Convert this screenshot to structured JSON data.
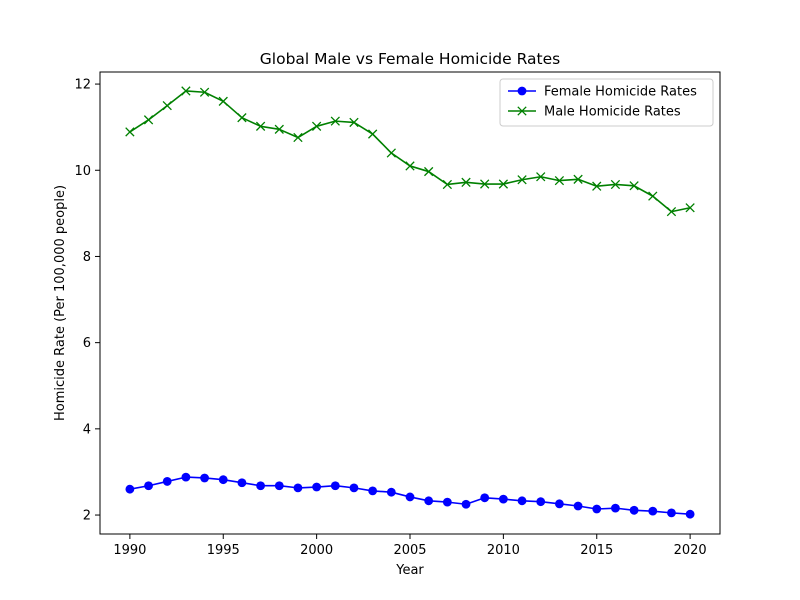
{
  "chart_data": {
    "type": "line",
    "title": "Global Male vs Female Homicide Rates",
    "xlabel": "Year",
    "ylabel": "Homicide Rate (Per 100,000 people)",
    "xlim": [
      1988.4,
      2021.6
    ],
    "ylim": [
      1.56,
      12.28
    ],
    "x_ticks": [
      1990,
      1995,
      2000,
      2005,
      2010,
      2015,
      2020
    ],
    "y_ticks": [
      2,
      4,
      6,
      8,
      10,
      12
    ],
    "grid": false,
    "legend_position": "top-right",
    "x": [
      1990,
      1991,
      1992,
      1993,
      1994,
      1995,
      1996,
      1997,
      1998,
      1999,
      2000,
      2001,
      2002,
      2003,
      2004,
      2005,
      2006,
      2007,
      2008,
      2009,
      2010,
      2011,
      2012,
      2013,
      2014,
      2015,
      2016,
      2017,
      2018,
      2019,
      2020
    ],
    "series": [
      {
        "name": "Female Homicide Rates",
        "color": "#0000ff",
        "marker": "circle",
        "values": [
          2.6,
          2.68,
          2.78,
          2.88,
          2.86,
          2.82,
          2.75,
          2.68,
          2.68,
          2.63,
          2.65,
          2.68,
          2.63,
          2.56,
          2.53,
          2.42,
          2.33,
          2.3,
          2.25,
          2.4,
          2.37,
          2.33,
          2.31,
          2.26,
          2.21,
          2.14,
          2.16,
          2.11,
          2.09,
          2.05,
          2.02
        ]
      },
      {
        "name": "Male Homicide Rates",
        "color": "#008000",
        "marker": "x",
        "values": [
          10.89,
          11.17,
          11.5,
          11.84,
          11.81,
          11.6,
          11.22,
          11.02,
          10.95,
          10.76,
          11.02,
          11.14,
          11.11,
          10.84,
          10.4,
          10.1,
          9.97,
          9.67,
          9.72,
          9.68,
          9.68,
          9.78,
          9.85,
          9.76,
          9.79,
          9.63,
          9.67,
          9.64,
          9.4,
          9.04,
          9.13
        ]
      }
    ]
  }
}
